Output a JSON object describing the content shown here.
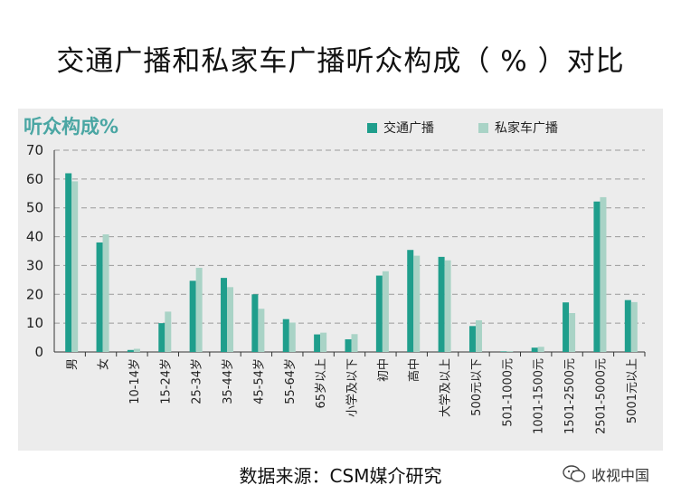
{
  "title": "交通广播和私家车广播听众构成（ % ）对比",
  "source": "数据来源：CSM媒介研究",
  "watermark": "收视中国",
  "colors": {
    "series1": "#1f9e8c",
    "series2": "#a9d3c6",
    "grid": "#9a9a9a",
    "background": "#ececec"
  },
  "chart_data": {
    "type": "bar",
    "title": "交通广播和私家车广播听众构成（ % ）对比",
    "ylabel": "听众构成%",
    "xlabel": "",
    "ylim": [
      0,
      70
    ],
    "yticks": [
      0,
      10,
      20,
      30,
      40,
      50,
      60,
      70
    ],
    "grid": true,
    "legend_position": "top-right",
    "categories": [
      "男",
      "女",
      "10-14岁",
      "15-24岁",
      "25-34岁",
      "35-44岁",
      "45-54岁",
      "55-64岁",
      "65岁以上",
      "小学及以下",
      "初中",
      "高中",
      "大学及以上",
      "500元以下",
      "501-1000元",
      "1001-1500元",
      "1501-2500元",
      "2501-5000元",
      "5001元以上"
    ],
    "series": [
      {
        "name": "交通广播",
        "values": [
          62,
          38,
          0.7,
          10,
          24.7,
          25.7,
          20,
          11.4,
          6.1,
          4.4,
          26.5,
          35.4,
          33,
          9,
          0.2,
          1.5,
          17.2,
          52.2,
          18
        ]
      },
      {
        "name": "私家车广播",
        "values": [
          59.2,
          40.8,
          1.1,
          14,
          29.2,
          22.5,
          15,
          10.2,
          6.7,
          6.2,
          28,
          33.4,
          31.8,
          11,
          0.3,
          1.8,
          13.5,
          53.7,
          17.3
        ]
      }
    ]
  }
}
